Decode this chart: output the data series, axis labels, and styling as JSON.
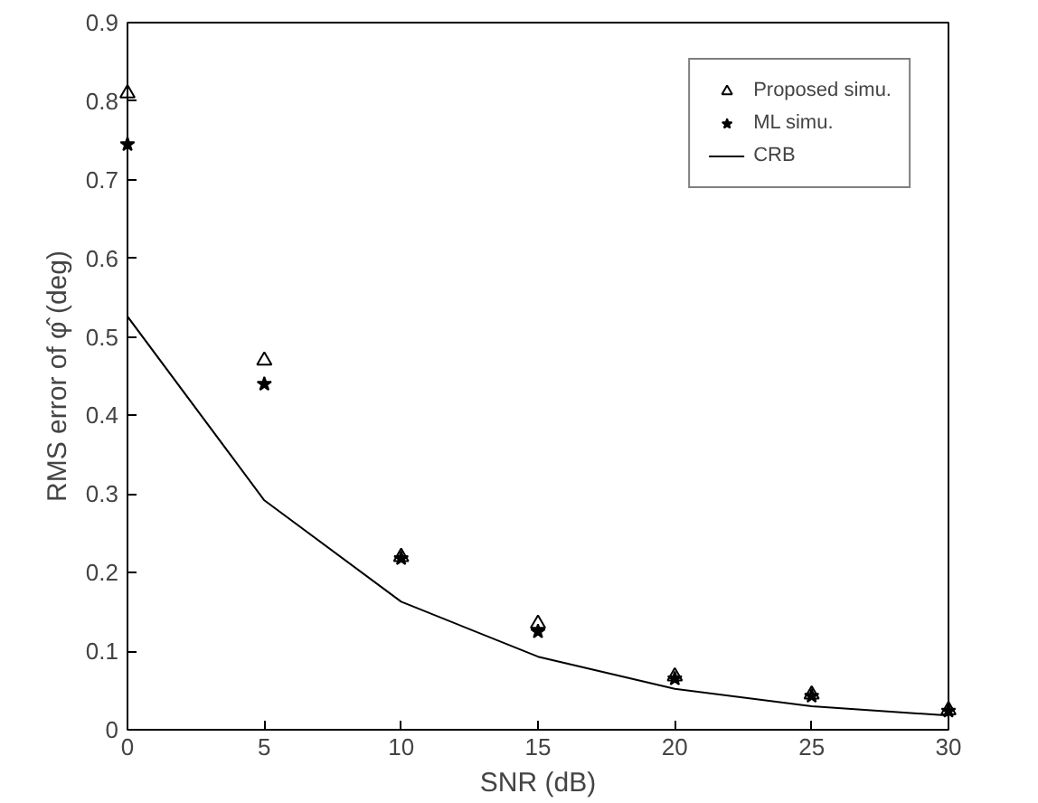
{
  "chart_data": {
    "type": "scatter",
    "xlabel": "SNR (dB)",
    "ylabel": "RMS error of φ̂ (deg)",
    "x": [
      0,
      5,
      10,
      15,
      20,
      25,
      30
    ],
    "series": [
      {
        "name": "Proposed simu.",
        "color": "#000000",
        "marker": "triangle",
        "values": [
          0.81,
          0.47,
          0.22,
          0.135,
          0.068,
          0.045,
          0.025
        ]
      },
      {
        "name": "ML simu.",
        "color": "#000000",
        "marker": "star",
        "values": [
          0.745,
          0.44,
          0.218,
          0.125,
          0.065,
          0.043,
          0.024
        ]
      },
      {
        "name": "CRB",
        "color": "#000000",
        "type": "line",
        "marker": "none",
        "line_style": "solid",
        "values": [
          0.526,
          0.292,
          0.163,
          0.093,
          0.052,
          0.03,
          0.018
        ]
      }
    ],
    "xlim": [
      0,
      30
    ],
    "ylim": [
      0,
      0.9
    ],
    "xticks": [
      0,
      5,
      10,
      15,
      20,
      25,
      30
    ],
    "yticks": [
      0,
      0.1,
      0.2,
      0.3,
      0.4,
      0.5,
      0.6,
      0.7,
      0.8,
      0.9
    ],
    "grid": false,
    "legend": "top right"
  }
}
